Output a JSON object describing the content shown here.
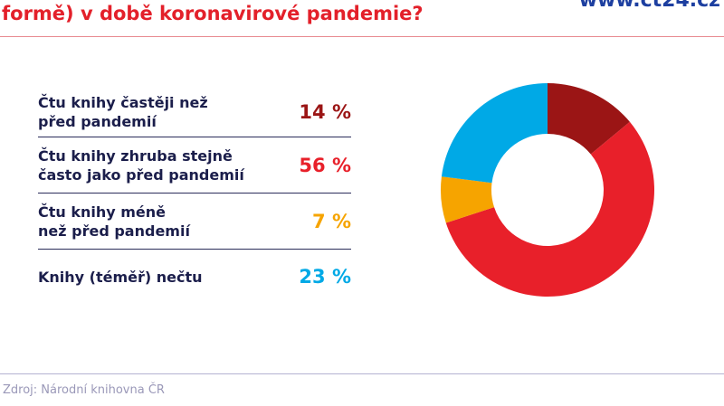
{
  "header": {
    "title": "formě) v době koronavirové pandemie?",
    "url": "www.ct24.cz"
  },
  "footer": {
    "source": "Zdroj: Národní knihovna ČR"
  },
  "chart_data": {
    "type": "pie",
    "donut": true,
    "categories": [
      "Čtu knihy častěji než před pandemií",
      "Čtu knihy zhruba stejně často jako před pandemií",
      "Čtu knihy méně než před pandemií",
      "Knihy (téměř) nečtu"
    ],
    "values": [
      14,
      56,
      7,
      23
    ],
    "labels": [
      "14 %",
      "56 %",
      "7 %",
      "23 %"
    ],
    "colors": [
      "#9b1515",
      "#e8202a",
      "#f6a400",
      "#00a9e6"
    ]
  }
}
